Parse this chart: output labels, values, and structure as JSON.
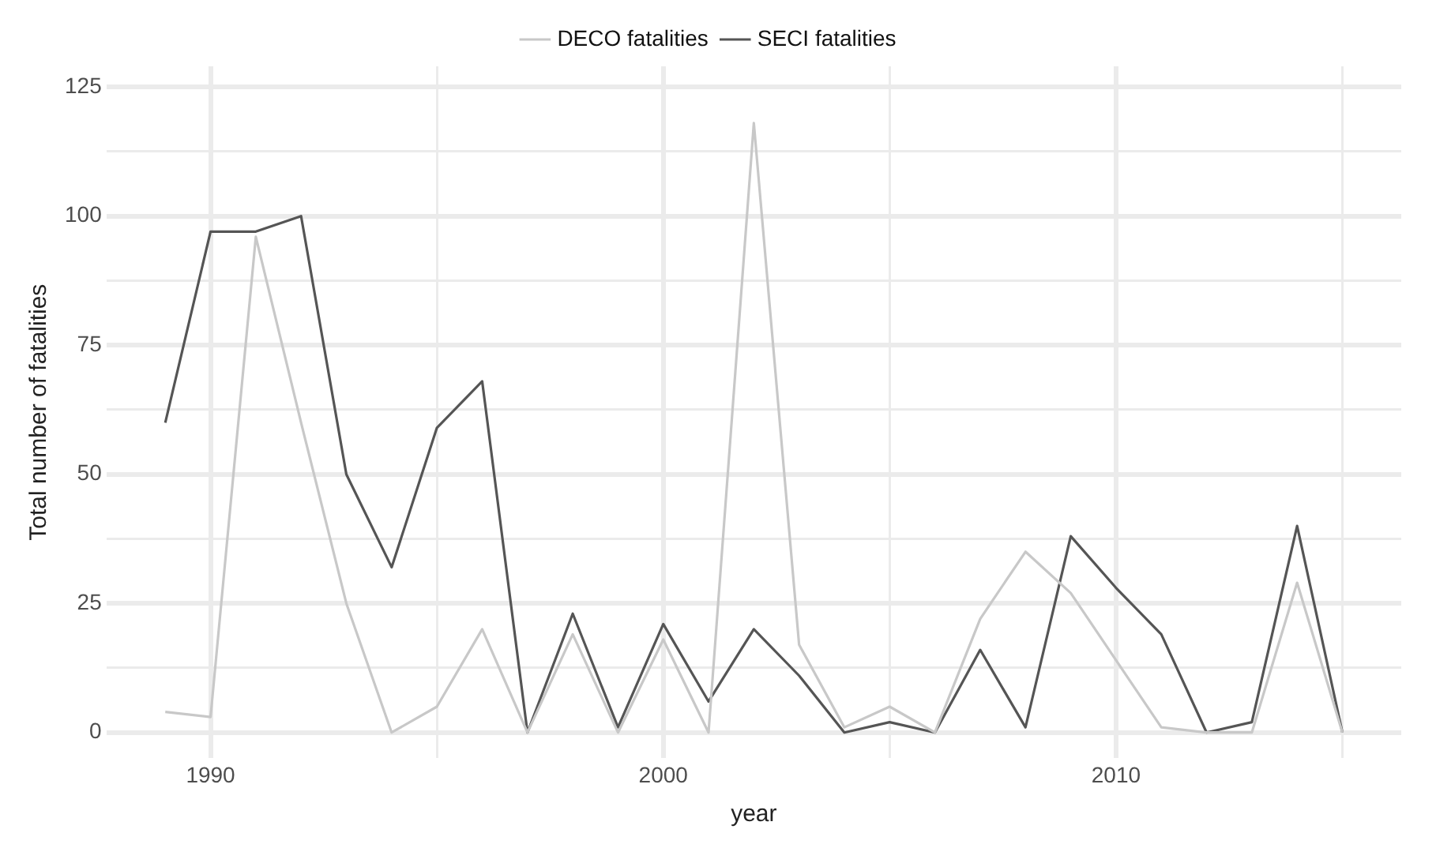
{
  "chart_data": {
    "type": "line",
    "xlabel": "year",
    "ylabel": "Total number of fatalities",
    "x": [
      1989,
      1990,
      1991,
      1992,
      1993,
      1994,
      1995,
      1996,
      1997,
      1998,
      1999,
      2000,
      2001,
      2002,
      2003,
      2004,
      2005,
      2006,
      2007,
      2008,
      2009,
      2010,
      2011,
      2012,
      2013,
      2014,
      2015
    ],
    "series": [
      {
        "name": "DECO fatalities",
        "color": "#c8c8c8",
        "values": [
          4,
          3,
          96,
          60,
          25,
          0,
          5,
          20,
          0,
          19,
          0,
          18,
          0,
          118,
          17,
          1,
          5,
          0,
          22,
          35,
          27,
          14,
          1,
          0,
          0,
          29,
          0
        ]
      },
      {
        "name": "SECI fatalities",
        "color": "#555555",
        "values": [
          60,
          97,
          97,
          100,
          50,
          32,
          59,
          68,
          0,
          23,
          1,
          21,
          6,
          20,
          11,
          0,
          2,
          0,
          16,
          1,
          38,
          28,
          19,
          0,
          2,
          40,
          0
        ]
      }
    ],
    "xlim": [
      1987.7,
      2016.3
    ],
    "ylim": [
      -5,
      129
    ],
    "xticks": [
      1990,
      {
        "value": 1995,
        "label": null
      },
      2000,
      {
        "value": 2005,
        "label": null
      },
      2010,
      {
        "value": 2015,
        "label": null
      }
    ],
    "yticks": [
      0,
      {
        "value": 12.5,
        "label": null
      },
      25,
      {
        "value": 37.5,
        "label": null
      },
      50,
      {
        "value": 62.5,
        "label": null
      },
      75,
      {
        "value": 87.5,
        "label": null
      },
      100,
      {
        "value": 112.5,
        "label": null
      },
      125
    ],
    "grid": true,
    "legend": "top",
    "marker": "none",
    "line_style": "solid"
  }
}
